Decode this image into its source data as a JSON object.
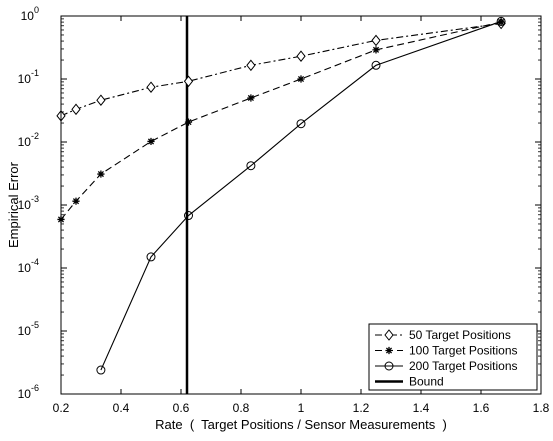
{
  "chart_data": {
    "type": "line",
    "xlabel": "Rate  (  Target Positions / Sensor Measurements  )",
    "ylabel": "Empirical Error",
    "xlim": [
      0.2,
      1.8
    ],
    "ylim": [
      1e-06,
      1
    ],
    "yscale": "log",
    "grid": false,
    "legend_position": "bottom-right",
    "x_ticks": [
      0.2,
      0.4,
      0.6,
      0.8,
      1,
      1.2,
      1.4,
      1.6,
      1.8
    ],
    "x_tick_labels": [
      "0.2",
      "0.4",
      "0.6",
      "0.8",
      "1",
      "1.2",
      "1.4",
      "1.6",
      "1.8"
    ],
    "y_ticks": [
      {
        "value": 1e-06,
        "base": "10",
        "exp": "-6"
      },
      {
        "value": 1e-05,
        "base": "10",
        "exp": "-5"
      },
      {
        "value": 0.0001,
        "base": "10",
        "exp": "-4"
      },
      {
        "value": 0.001,
        "base": "10",
        "exp": "-3"
      },
      {
        "value": 0.01,
        "base": "10",
        "exp": "-2"
      },
      {
        "value": 0.1,
        "base": "10",
        "exp": "-1"
      },
      {
        "value": 1,
        "base": "10",
        "exp": "0"
      }
    ],
    "series": [
      {
        "name": "50 Target Positions",
        "marker": "diamond",
        "line_style": "dashdot",
        "x": [
          0.2,
          0.25,
          0.333,
          0.5,
          0.625,
          0.833,
          1.0,
          1.25,
          1.667
        ],
        "y": [
          0.026,
          0.033,
          0.046,
          0.074,
          0.092,
          0.165,
          0.23,
          0.41,
          0.76
        ]
      },
      {
        "name": "100 Target Positions",
        "marker": "star",
        "line_style": "dashed",
        "x": [
          0.2,
          0.25,
          0.333,
          0.5,
          0.625,
          0.833,
          1.0,
          1.25,
          1.667
        ],
        "y": [
          0.00059,
          0.00115,
          0.0031,
          0.0102,
          0.0207,
          0.05,
          0.1,
          0.29,
          0.8
        ]
      },
      {
        "name": "200 Target Positions",
        "marker": "circle",
        "line_style": "solid",
        "x": [
          0.333,
          0.5,
          0.625,
          0.833,
          1.0,
          1.25,
          1.667
        ],
        "y": [
          2.4e-06,
          0.00015,
          0.00068,
          0.0042,
          0.0195,
          0.165,
          0.82
        ]
      }
    ],
    "bound": {
      "name": "Bound",
      "x": 0.62
    },
    "colors": {
      "line": "#000000",
      "background": "#ffffff"
    }
  }
}
